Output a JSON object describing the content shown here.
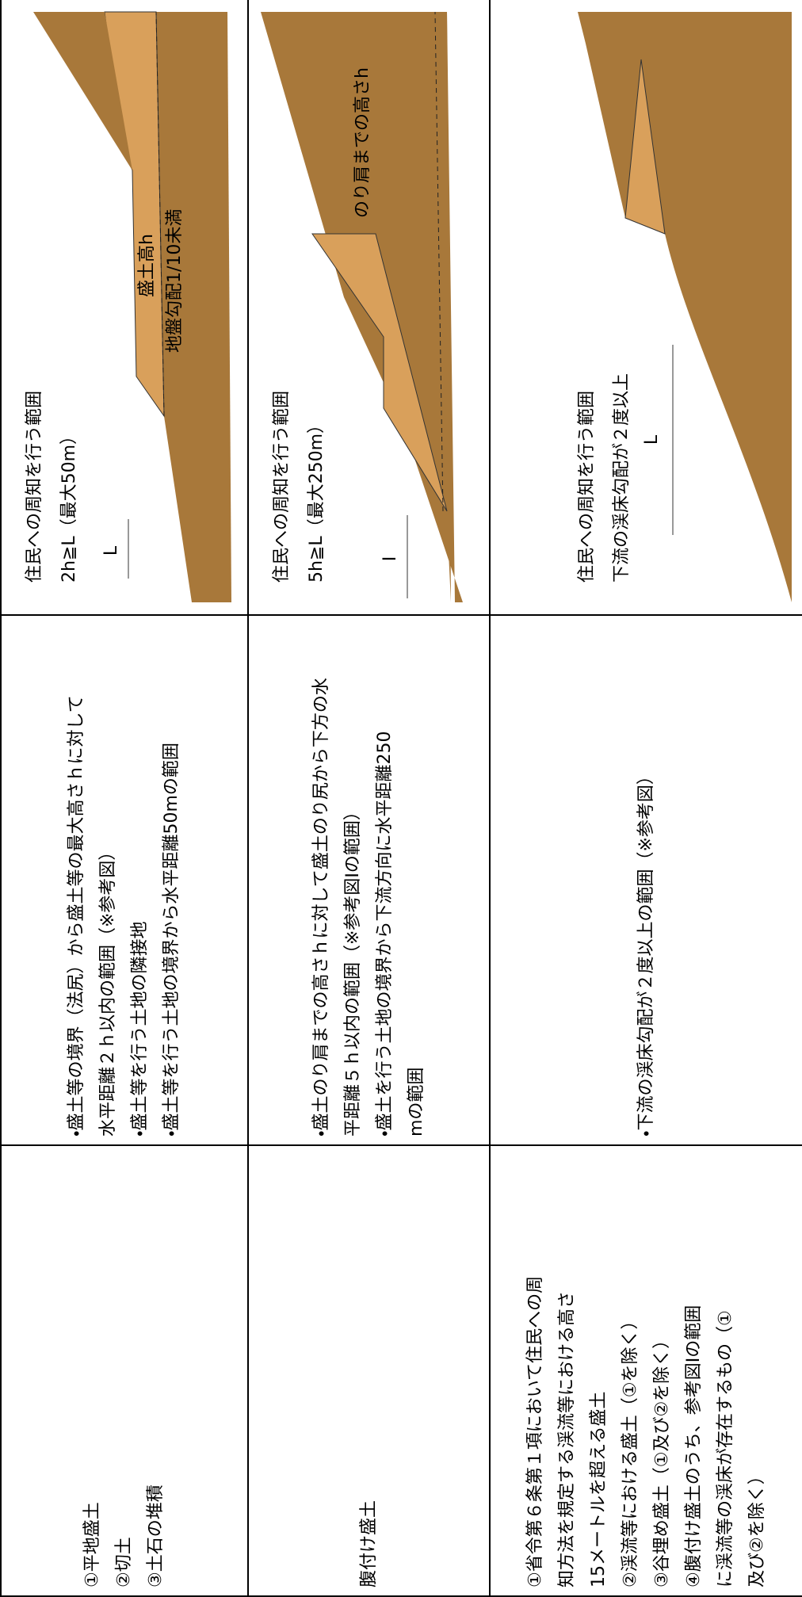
{
  "table": {
    "rows": [
      {
        "type": [
          "①平地盛土",
          "②切土",
          "③土石の堆積"
        ],
        "criteria": [
          "・盛土等の境界（法尻）から盛土等の最大高さｈに対して",
          "水平距離２ｈ以内の範囲（※参考図）",
          "・盛土等を行う土地の隣接地",
          "・盛土等を行う土地の境界から水平距離50mの範囲"
        ],
        "notice": [
          "住民への周知を行う範囲",
          "2h≧L（最大50m）"
        ],
        "figure": {
          "distance": "L",
          "height": "盛土高h",
          "slope": "地盤勾配1/10未満"
        }
      },
      {
        "type": [
          "腹付け盛土"
        ],
        "criteria": [
          "・盛土のり肩までの高さｈに対して盛土のり尻から下方の水",
          "平距離５ｈ以内の範囲（※参考図Iの範囲）",
          "・盛土を行う土地の境界から下流方向に水平距離250",
          "mの範囲"
        ],
        "notice": [
          "住民への周知を行う範囲",
          "5h≧L（最大250m）"
        ],
        "figure": {
          "distance": "I",
          "height": "のり肩までの高さh"
        }
      },
      {
        "type": [
          "①省令第６条第１項において住民への周",
          "知方法を規定する渓流等における高さ",
          "15メートルを超える盛土",
          "②渓流等における盛土（①を除く）",
          "③谷埋め盛土（①及び②を除く）",
          "④腹付け盛土のうち、参考図Iの範囲",
          "に渓流等の渓床が存在するもの（①",
          "及び②を除く）"
        ],
        "criteria": [
          "・下流の渓床勾配が２度以上の範囲（※参考図）"
        ],
        "notice": [
          "住民への周知を行う範囲",
          "下流の渓床勾配が２度以上"
        ],
        "figure": {
          "distance": "L"
        }
      }
    ]
  }
}
